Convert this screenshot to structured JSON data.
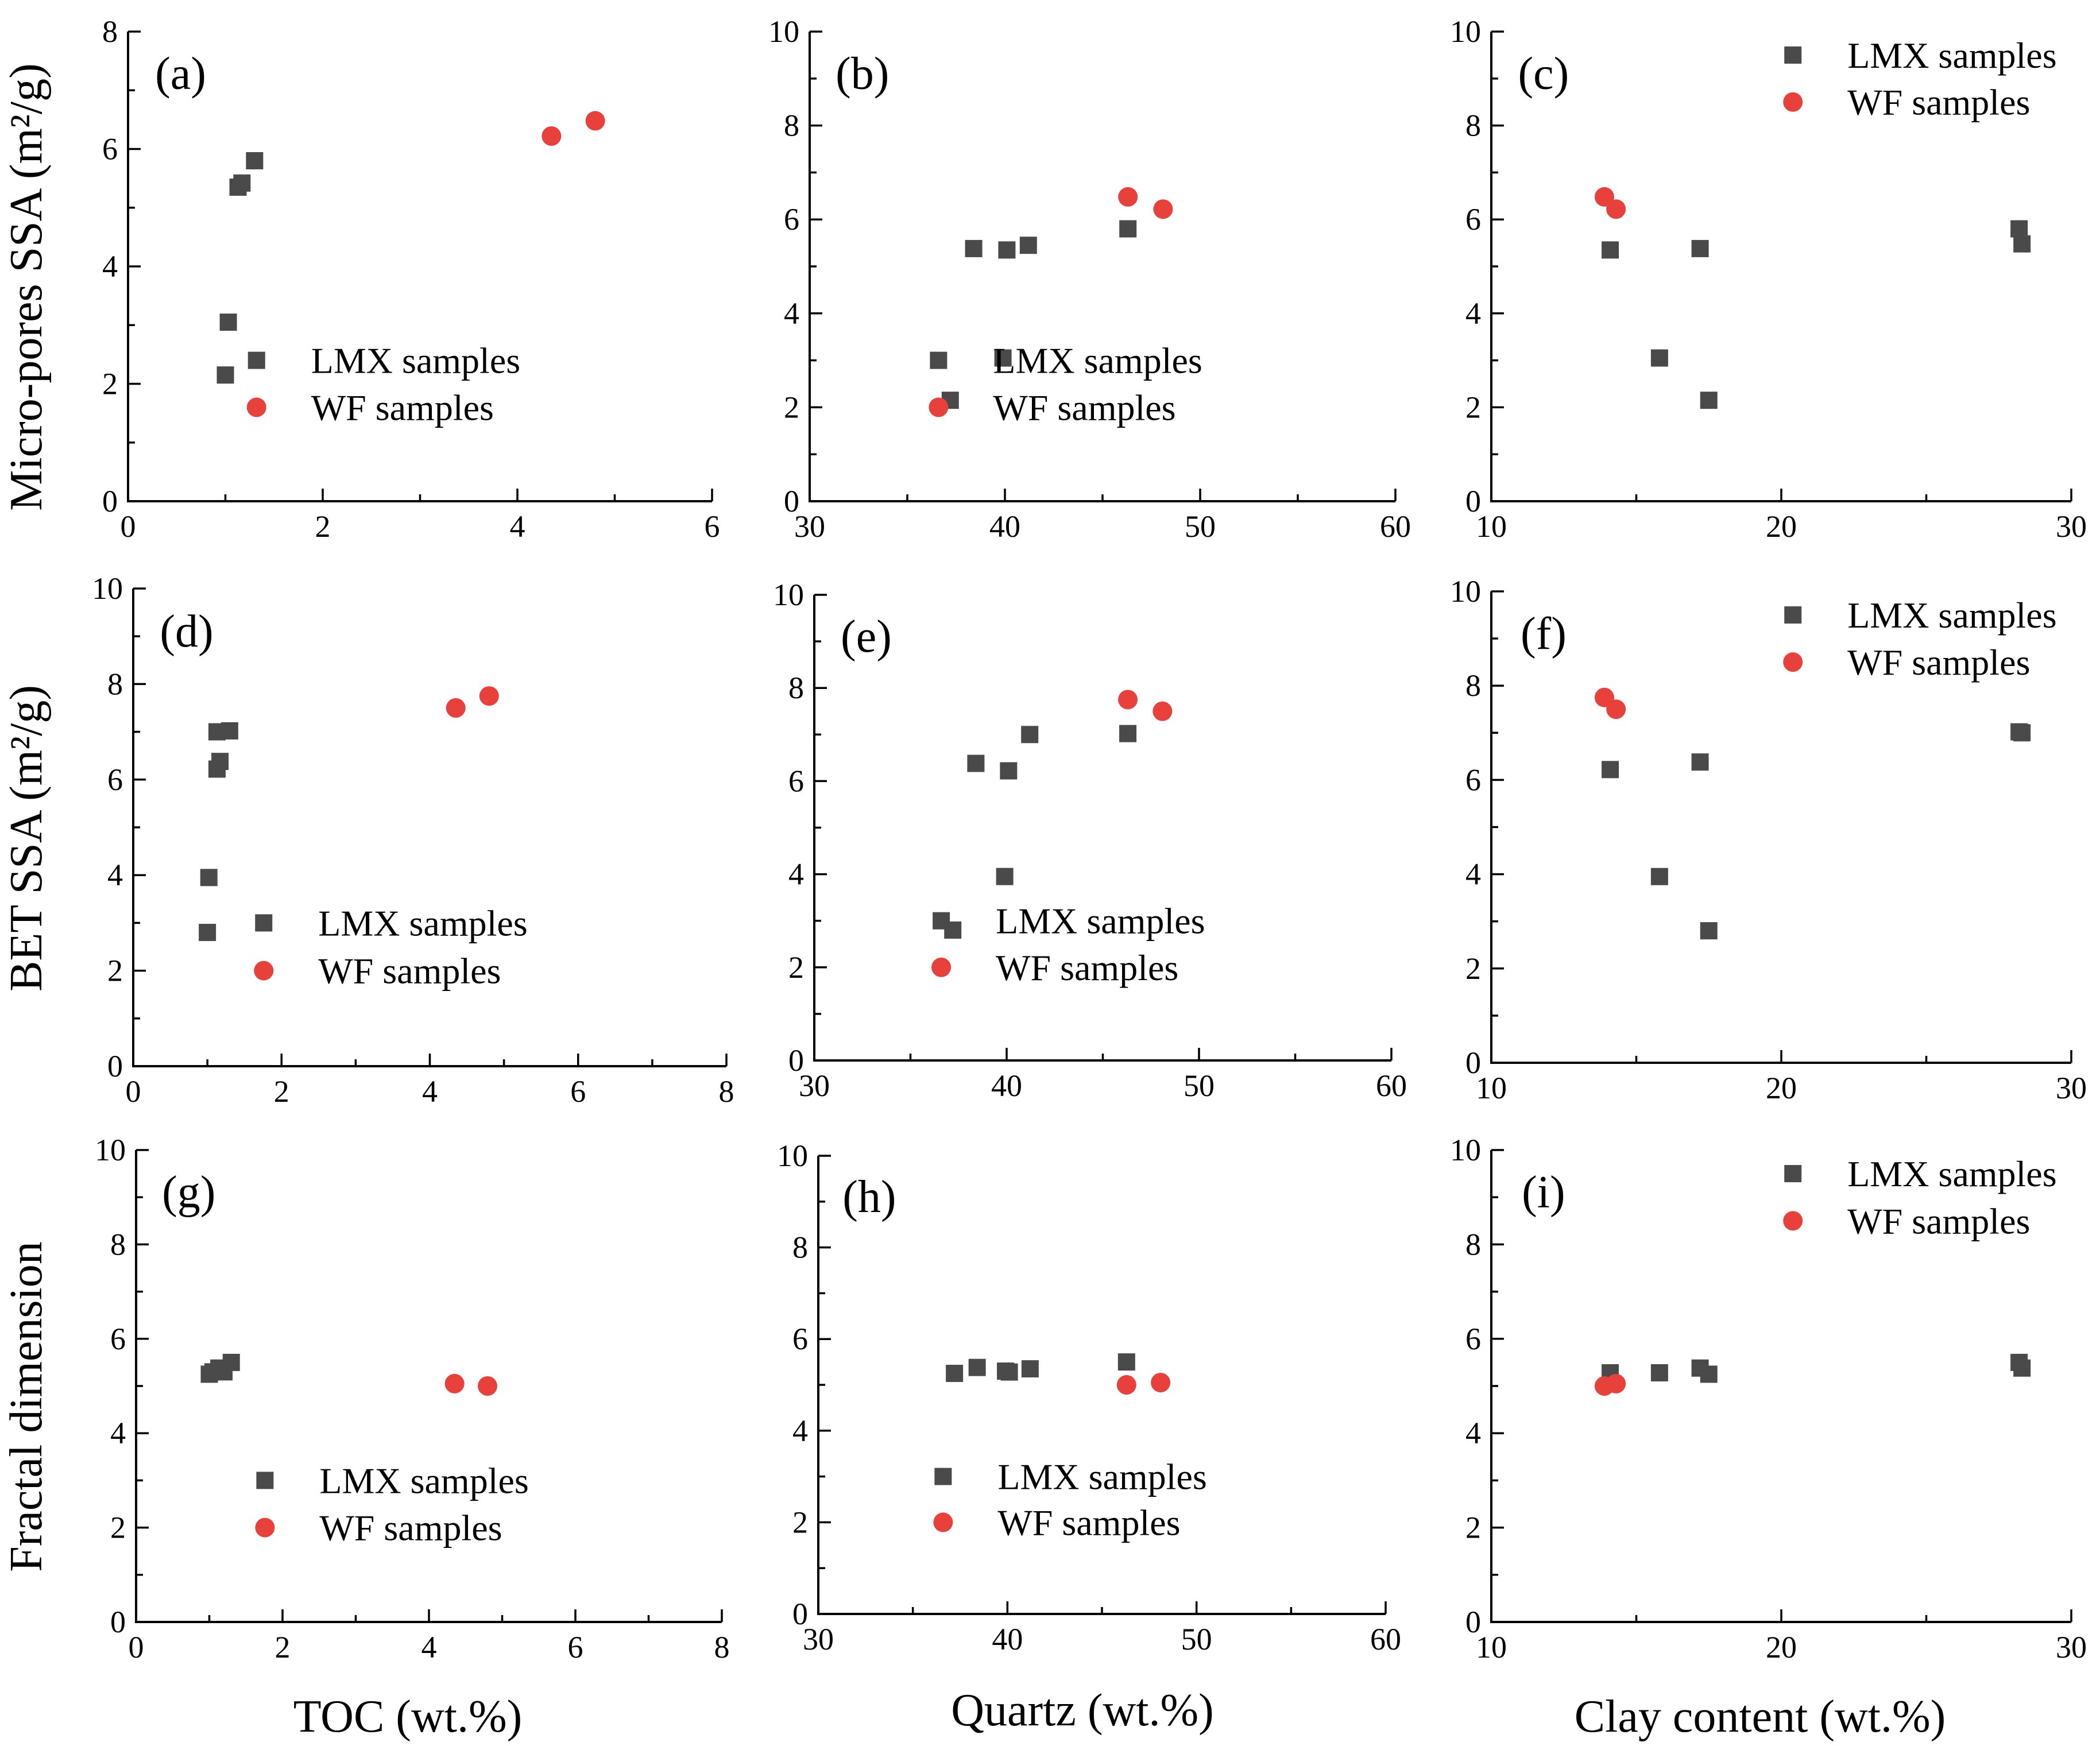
{
  "figure": {
    "row_ylabels": [
      "Micro-pores SSA (m²/g)",
      "BET SSA (m²/g)",
      "Fractal dimension"
    ],
    "col_xlabels": [
      "TOC (wt.%)",
      "Quartz (wt.%)",
      "Clay content (wt.%)"
    ]
  },
  "series_style": {
    "LMX samples": {
      "color": "#4a4a4a",
      "marker": "square"
    },
    "WF samples": {
      "color": "#e8403a",
      "marker": "circle"
    }
  },
  "chart_data": [
    {
      "type": "scatter",
      "panel": "(a)",
      "title": "(a)",
      "xlabel": "TOC (wt.%)",
      "ylabel": "Micro-pores SSA (m²/g)",
      "xlim": [
        0,
        6
      ],
      "ylim": [
        0,
        8
      ],
      "xticks": [
        "0",
        "2",
        "4",
        "6"
      ],
      "yticks": [
        "0",
        "2",
        "4",
        "6",
        "8"
      ],
      "legend": [
        "LMX samples",
        "WF samples"
      ],
      "legend_position": "bottom-right",
      "series": [
        {
          "name": "LMX samples",
          "x": [
            1.0,
            1.03,
            1.13,
            1.17,
            1.3
          ],
          "y": [
            2.15,
            3.05,
            5.35,
            5.42,
            5.8
          ]
        },
        {
          "name": "WF samples",
          "x": [
            4.35,
            4.8
          ],
          "y": [
            6.22,
            6.48
          ]
        }
      ]
    },
    {
      "type": "scatter",
      "panel": "(b)",
      "title": "(b)",
      "xlabel": "Quartz (wt.%)",
      "ylabel": "Micro-pores SSA (m²/g)",
      "xlim": [
        30,
        60
      ],
      "ylim": [
        0,
        10
      ],
      "xticks": [
        "30",
        "40",
        "50",
        "60"
      ],
      "yticks": [
        "0",
        "2",
        "4",
        "6",
        "8",
        "10"
      ],
      "legend": [
        "LMX samples",
        "WF samples"
      ],
      "legend_position": "bottom-right",
      "series": [
        {
          "name": "LMX samples",
          "x": [
            37.2,
            38.4,
            39.9,
            40.1,
            41.2,
            46.3
          ],
          "y": [
            2.15,
            5.38,
            3.05,
            5.35,
            5.45,
            5.8
          ]
        },
        {
          "name": "WF samples",
          "x": [
            46.3,
            48.1
          ],
          "y": [
            6.48,
            6.22
          ]
        }
      ]
    },
    {
      "type": "scatter",
      "panel": "(c)",
      "title": "(c)",
      "xlabel": "Clay content (wt.%)",
      "ylabel": "Micro-pores SSA (m²/g)",
      "xlim": [
        10,
        30
      ],
      "ylim": [
        0,
        10
      ],
      "xticks": [
        "10",
        "20",
        "30"
      ],
      "yticks": [
        "0",
        "2",
        "4",
        "6",
        "8",
        "10"
      ],
      "legend": [
        "LMX samples",
        "WF samples"
      ],
      "legend_position": "top-right",
      "series": [
        {
          "name": "LMX samples",
          "x": [
            14.1,
            15.8,
            17.2,
            17.5,
            28.2,
            28.3
          ],
          "y": [
            5.35,
            3.05,
            5.38,
            2.15,
            5.8,
            5.48
          ]
        },
        {
          "name": "WF samples",
          "x": [
            13.9,
            14.3
          ],
          "y": [
            6.48,
            6.22
          ]
        }
      ]
    },
    {
      "type": "scatter",
      "panel": "(d)",
      "title": "(d)",
      "xlabel": "TOC (wt.%)",
      "ylabel": "BET SSA (m²/g)",
      "xlim": [
        0,
        8
      ],
      "ylim": [
        0,
        10
      ],
      "xticks": [
        "0",
        "2",
        "4",
        "6",
        "8"
      ],
      "yticks": [
        "0",
        "2",
        "4",
        "6",
        "8",
        "10"
      ],
      "legend": [
        "LMX samples",
        "WF samples"
      ],
      "legend_position": "bottom-right",
      "series": [
        {
          "name": "LMX samples",
          "x": [
            1.0,
            1.02,
            1.13,
            1.17,
            1.13,
            1.3
          ],
          "y": [
            2.8,
            3.95,
            6.22,
            6.38,
            7.0,
            7.02
          ]
        },
        {
          "name": "WF samples",
          "x": [
            4.35,
            4.8
          ],
          "y": [
            7.5,
            7.75
          ]
        }
      ]
    },
    {
      "type": "scatter",
      "panel": "(e)",
      "title": "(e)",
      "xlabel": "Quartz (wt.%)",
      "ylabel": "BET SSA (m²/g)",
      "xlim": [
        30,
        60
      ],
      "ylim": [
        0,
        10
      ],
      "xticks": [
        "30",
        "40",
        "50",
        "60"
      ],
      "yticks": [
        "0",
        "2",
        "4",
        "6",
        "8",
        "10"
      ],
      "legend": [
        "LMX samples",
        "WF samples"
      ],
      "legend_position": "bottom-right",
      "series": [
        {
          "name": "LMX samples",
          "x": [
            37.2,
            38.4,
            39.9,
            40.1,
            41.2,
            46.3
          ],
          "y": [
            2.8,
            6.38,
            3.95,
            6.22,
            7.0,
            7.02
          ]
        },
        {
          "name": "WF samples",
          "x": [
            46.3,
            48.1
          ],
          "y": [
            7.75,
            7.5
          ]
        }
      ]
    },
    {
      "type": "scatter",
      "panel": "(f)",
      "title": "(f)",
      "xlabel": "Clay content (wt.%)",
      "ylabel": "BET SSA (m²/g)",
      "xlim": [
        10,
        30
      ],
      "ylim": [
        0,
        10
      ],
      "xticks": [
        "10",
        "20",
        "30"
      ],
      "yticks": [
        "0",
        "2",
        "4",
        "6",
        "8",
        "10"
      ],
      "legend": [
        "LMX samples",
        "WF samples"
      ],
      "legend_position": "top-right",
      "series": [
        {
          "name": "LMX samples",
          "x": [
            14.1,
            15.8,
            17.2,
            17.5,
            28.2,
            28.3
          ],
          "y": [
            6.22,
            3.95,
            6.38,
            2.8,
            7.02,
            7.0
          ]
        },
        {
          "name": "WF samples",
          "x": [
            13.9,
            14.3
          ],
          "y": [
            7.75,
            7.5
          ]
        }
      ]
    },
    {
      "type": "scatter",
      "panel": "(g)",
      "title": "(g)",
      "xlabel": "TOC (wt.%)",
      "ylabel": "Fractal dimension",
      "xlim": [
        0,
        8
      ],
      "ylim": [
        0,
        10
      ],
      "xticks": [
        "0",
        "2",
        "4",
        "6",
        "8"
      ],
      "yticks": [
        "0",
        "2",
        "4",
        "6",
        "8",
        "10"
      ],
      "legend": [
        "LMX samples",
        "WF samples"
      ],
      "legend_position": "bottom-right",
      "series": [
        {
          "name": "LMX samples",
          "x": [
            1.0,
            1.05,
            1.13,
            1.2,
            1.3
          ],
          "y": [
            5.25,
            5.3,
            5.38,
            5.3,
            5.5
          ]
        },
        {
          "name": "WF samples",
          "x": [
            4.35,
            4.8
          ],
          "y": [
            5.05,
            5.0
          ]
        }
      ]
    },
    {
      "type": "scatter",
      "panel": "(h)",
      "title": "(h)",
      "xlabel": "Quartz (wt.%)",
      "ylabel": "Fractal dimension",
      "xlim": [
        30,
        60
      ],
      "ylim": [
        0,
        10
      ],
      "xticks": [
        "30",
        "40",
        "50",
        "60"
      ],
      "yticks": [
        "0",
        "2",
        "4",
        "6",
        "8",
        "10"
      ],
      "legend": [
        "LMX samples",
        "WF samples"
      ],
      "legend_position": "bottom-right",
      "series": [
        {
          "name": "LMX samples",
          "x": [
            37.2,
            38.4,
            39.9,
            40.1,
            41.2,
            46.3
          ],
          "y": [
            5.25,
            5.38,
            5.3,
            5.28,
            5.35,
            5.5
          ]
        },
        {
          "name": "WF samples",
          "x": [
            46.3,
            48.1
          ],
          "y": [
            5.0,
            5.05
          ]
        }
      ]
    },
    {
      "type": "scatter",
      "panel": "(i)",
      "title": "(i)",
      "xlabel": "Clay content (wt.%)",
      "ylabel": "Fractal dimension",
      "xlim": [
        10,
        30
      ],
      "ylim": [
        0,
        10
      ],
      "xticks": [
        "10",
        "20",
        "30"
      ],
      "yticks": [
        "0",
        "2",
        "4",
        "6",
        "8",
        "10"
      ],
      "legend": [
        "LMX samples",
        "WF samples"
      ],
      "legend_position": "top-right",
      "series": [
        {
          "name": "LMX samples",
          "x": [
            14.1,
            15.8,
            17.2,
            17.5,
            28.2,
            28.3
          ],
          "y": [
            5.28,
            5.28,
            5.38,
            5.25,
            5.5,
            5.38
          ]
        },
        {
          "name": "WF samples",
          "x": [
            13.9,
            14.3
          ],
          "y": [
            5.0,
            5.05
          ]
        }
      ]
    }
  ]
}
